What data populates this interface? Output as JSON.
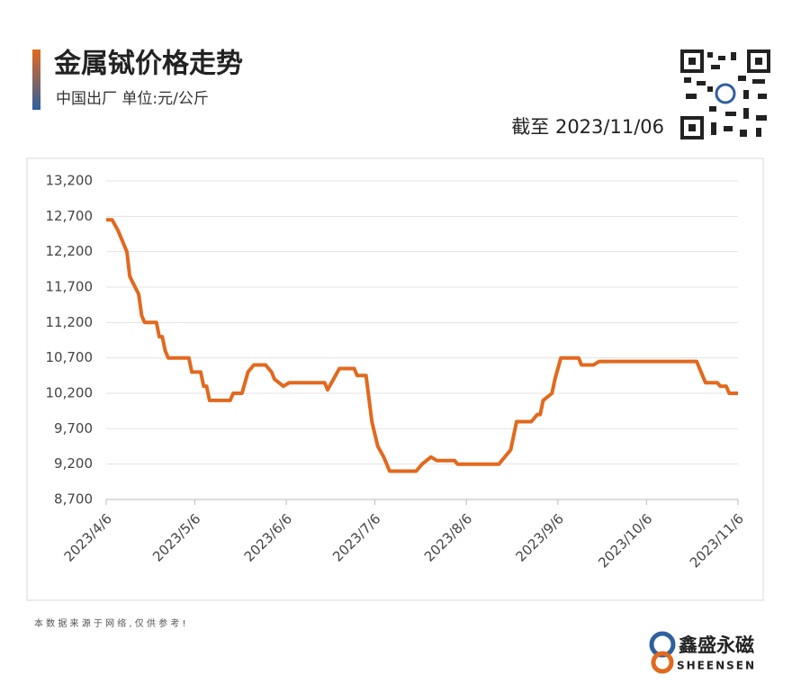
{
  "header": {
    "title": "金属铽价格走势",
    "subtitle": "中国出厂  单位:元/公斤",
    "as_of": "截至 2023/11/06"
  },
  "footer": {
    "note": "本 数 据 来 源 于 网 络 , 仅 供 参 考 !",
    "brand": "鑫盛永磁",
    "brand_en": "SHEENSEN"
  },
  "chart_data": {
    "type": "line",
    "color": "#e2691e",
    "grid": true,
    "x": [
      "2023/4/6",
      "2023/4/8",
      "2023/4/10",
      "2023/4/13",
      "2023/4/14",
      "2023/4/17",
      "2023/4/18",
      "2023/4/19",
      "2023/4/23",
      "2023/4/24",
      "2023/4/25",
      "2023/4/26",
      "2023/4/27",
      "2023/5/4",
      "2023/5/5",
      "2023/5/8",
      "2023/5/9",
      "2023/5/10",
      "2023/5/11",
      "2023/5/18",
      "2023/5/19",
      "2023/5/22",
      "2023/5/24",
      "2023/5/26",
      "2023/5/30",
      "2023/6/1",
      "2023/6/2",
      "2023/6/5",
      "2023/6/7",
      "2023/6/19",
      "2023/6/20",
      "2023/6/24",
      "2023/6/29",
      "2023/6/30",
      "2023/7/3",
      "2023/7/5",
      "2023/7/7",
      "2023/7/9",
      "2023/7/11",
      "2023/7/20",
      "2023/7/22",
      "2023/7/25",
      "2023/7/27",
      "2023/8/2",
      "2023/8/3",
      "2023/8/17",
      "2023/8/21",
      "2023/8/23",
      "2023/8/28",
      "2023/8/30",
      "2023/8/31",
      "2023/9/1",
      "2023/9/4",
      "2023/9/5",
      "2023/9/7",
      "2023/9/13",
      "2023/9/14",
      "2023/9/18",
      "2023/9/20",
      "2023/10/23",
      "2023/10/25",
      "2023/10/26",
      "2023/10/30",
      "2023/10/31",
      "2023/11/2",
      "2023/11/3",
      "2023/11/6"
    ],
    "values": [
      12650,
      12650,
      12500,
      12200,
      11850,
      11600,
      11300,
      11200,
      11200,
      11000,
      11000,
      10800,
      10700,
      10700,
      10500,
      10500,
      10300,
      10300,
      10100,
      10100,
      10200,
      10200,
      10500,
      10600,
      10600,
      10500,
      10400,
      10300,
      10350,
      10350,
      10250,
      10550,
      10550,
      10450,
      10450,
      9800,
      9450,
      9300,
      9100,
      9100,
      9200,
      9300,
      9250,
      9250,
      9200,
      9200,
      9400,
      9800,
      9800,
      9900,
      9900,
      10100,
      10200,
      10400,
      10700,
      10700,
      10600,
      10600,
      10650,
      10650,
      10450,
      10350,
      10350,
      10300,
      10300,
      10200,
      10200
    ],
    "xlim": [
      "2023/4/6",
      "2023/11/6"
    ],
    "xticks": [
      "2023/4/6",
      "2023/5/6",
      "2023/6/6",
      "2023/7/6",
      "2023/8/6",
      "2023/9/6",
      "2023/10/6",
      "2023/11/6"
    ],
    "ylim": [
      8700,
      13200
    ],
    "yticks": [
      {
        "value": 8700,
        "label": "8,700"
      },
      {
        "value": 9200,
        "label": "9,200"
      },
      {
        "value": 9700,
        "label": "9,700"
      },
      {
        "value": 10200,
        "label": "10,200"
      },
      {
        "value": 10700,
        "label": "10,700"
      },
      {
        "value": 11200,
        "label": "11,200"
      },
      {
        "value": 11700,
        "label": "11,700"
      },
      {
        "value": 12200,
        "label": "12,200"
      },
      {
        "value": 12700,
        "label": "12,700"
      },
      {
        "value": 13200,
        "label": "13,200"
      }
    ]
  }
}
